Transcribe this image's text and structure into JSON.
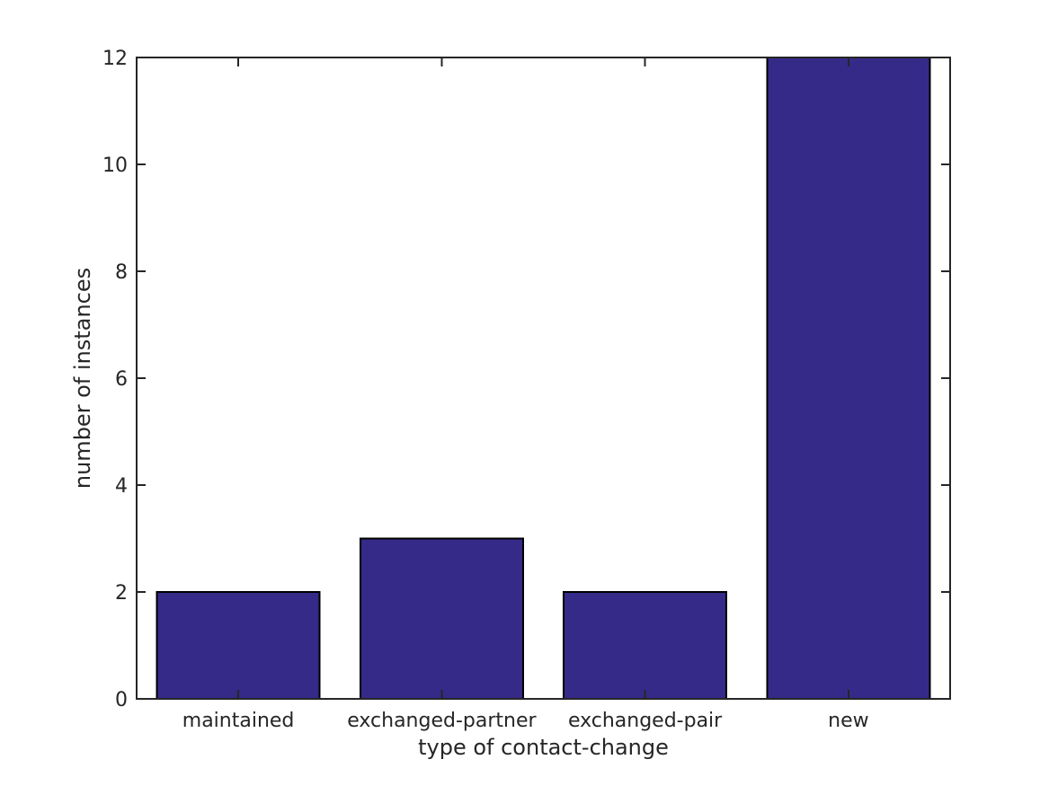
{
  "chart_data": {
    "type": "bar",
    "title": "",
    "categories": [
      "maintained",
      "exchanged-partner",
      "exchanged-pair",
      "new"
    ],
    "values": [
      2,
      3,
      2,
      12
    ],
    "xlabel": "type of contact-change",
    "ylabel": "number of instances",
    "ylim": [
      0,
      12
    ],
    "yticks": [
      0,
      2,
      4,
      6,
      8,
      10,
      12
    ],
    "ytick_labels": [
      "0",
      "2",
      "4",
      "6",
      "8",
      "10",
      "12"
    ],
    "bar_width_fraction": 0.8,
    "grid": false,
    "legend": null,
    "box": true,
    "tick_direction": "in",
    "colors": {
      "bar_fill": "#352A87",
      "bar_edge": "#000000",
      "axis": "#262626",
      "text": "#262626",
      "background": "#ffffff"
    }
  }
}
